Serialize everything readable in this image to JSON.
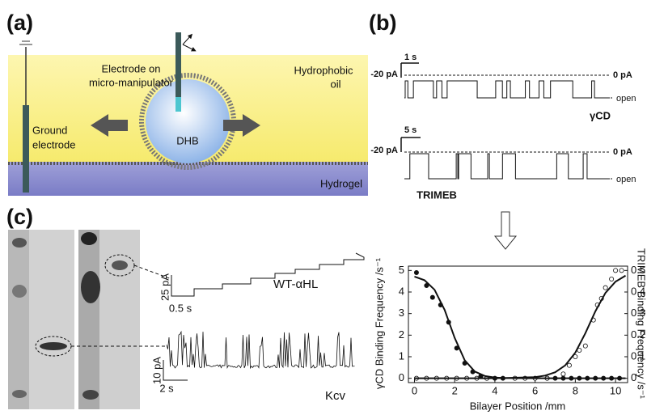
{
  "panel_a": {
    "label": "(a)",
    "electrode": [
      "Electrode on",
      "micro-manipulator"
    ],
    "oil": [
      "Hydrophobic",
      "oil"
    ],
    "droplet": "DHB",
    "ground": [
      "Ground",
      "electrode"
    ],
    "gel": "Hydrogel"
  },
  "panel_b": {
    "label": "(b)",
    "trace1": {
      "time_scale": "1 s",
      "current_scale": "-20 pA",
      "zero": "0 pA",
      "open": "open",
      "name": "γCD"
    },
    "trace2": {
      "time_scale": "5 s",
      "current_scale": "-20 pA",
      "zero": "0 pA",
      "open": "open",
      "name": "TRIMEB"
    }
  },
  "panel_c": {
    "label": "(c)",
    "trace1": {
      "current_scale": "25 pA",
      "time_scale": "0.5 s",
      "name": "WT-αHL"
    },
    "trace2": {
      "current_scale": "10 pA",
      "time_scale": "2 s",
      "name": "Kcv"
    }
  },
  "chart_data": {
    "type": "scatter",
    "x_label": "Bilayer Position /mm",
    "y_label": "γCD Binding Frequency /s⁻¹",
    "y2_label": "TRIMEB Binding Frequency /s⁻¹",
    "xlim": [
      -0.3,
      10.6
    ],
    "xticks": [
      0,
      2,
      4,
      6,
      8,
      10
    ],
    "ylim": [
      -0.2,
      5.2
    ],
    "yticks": [
      0,
      1,
      2,
      3,
      4,
      5
    ],
    "y2lim": [
      -0.02,
      0.52
    ],
    "y2ticks": [
      0,
      0.1,
      0.2,
      0.3,
      0.4,
      0.5
    ],
    "series": [
      {
        "style": "filled",
        "color": "#111111",
        "x": [
          0.1,
          0.6,
          0.9,
          1.3,
          1.7,
          2.1,
          2.5,
          2.9,
          3.3,
          3.6,
          4.0,
          4.4,
          6.6,
          7.0,
          7.4,
          7.8,
          8.2,
          8.6,
          9.0,
          9.4,
          9.8,
          10.2
        ],
        "values": [
          4.9,
          4.3,
          3.75,
          3.4,
          2.6,
          1.4,
          0.7,
          0.3,
          0.1,
          0,
          0,
          0,
          0,
          0,
          0,
          0,
          0,
          0,
          0,
          0,
          0,
          0
        ]
      },
      {
        "style": "open",
        "color": "#111111",
        "axis": "y2",
        "x": [
          0.1,
          0.6,
          1.1,
          1.6,
          2.1,
          2.6,
          3.1,
          3.6,
          5.0,
          5.5,
          6.0,
          6.6,
          7.4,
          7.7,
          8.0,
          8.2,
          8.5,
          8.9,
          9.1,
          9.3,
          9.5,
          9.8,
          10.0,
          10.3
        ],
        "values": [
          0,
          0,
          0,
          0,
          0,
          0,
          0,
          0,
          0,
          0,
          0,
          0,
          0.02,
          0.06,
          0.1,
          0.13,
          0.15,
          0.27,
          0.34,
          0.37,
          0.42,
          0.46,
          0.5,
          0.5
        ]
      },
      {
        "style": "line",
        "color": "#111111",
        "x": [
          0,
          0.5,
          1,
          1.5,
          2,
          2.5,
          3,
          3.5,
          4,
          4.5,
          5,
          6,
          7,
          8,
          9,
          10,
          10.5
        ],
        "values": [
          4.714,
          4.547,
          4.106,
          3.172,
          1.875,
          0.836,
          0.312,
          0.107,
          0.036,
          0.012,
          0.004,
          0,
          0,
          0,
          0,
          0,
          0
        ]
      },
      {
        "style": "line",
        "color": "#111111",
        "axis": "y2",
        "x": [
          0,
          2,
          4,
          6,
          6.5,
          7,
          7.5,
          8,
          8.5,
          9,
          9.5,
          10,
          10.5
        ],
        "values": [
          0,
          0,
          0,
          0.0055,
          0.0125,
          0.028,
          0.06,
          0.119,
          0.209,
          0.311,
          0.396,
          0.448,
          0.476
        ]
      }
    ]
  }
}
